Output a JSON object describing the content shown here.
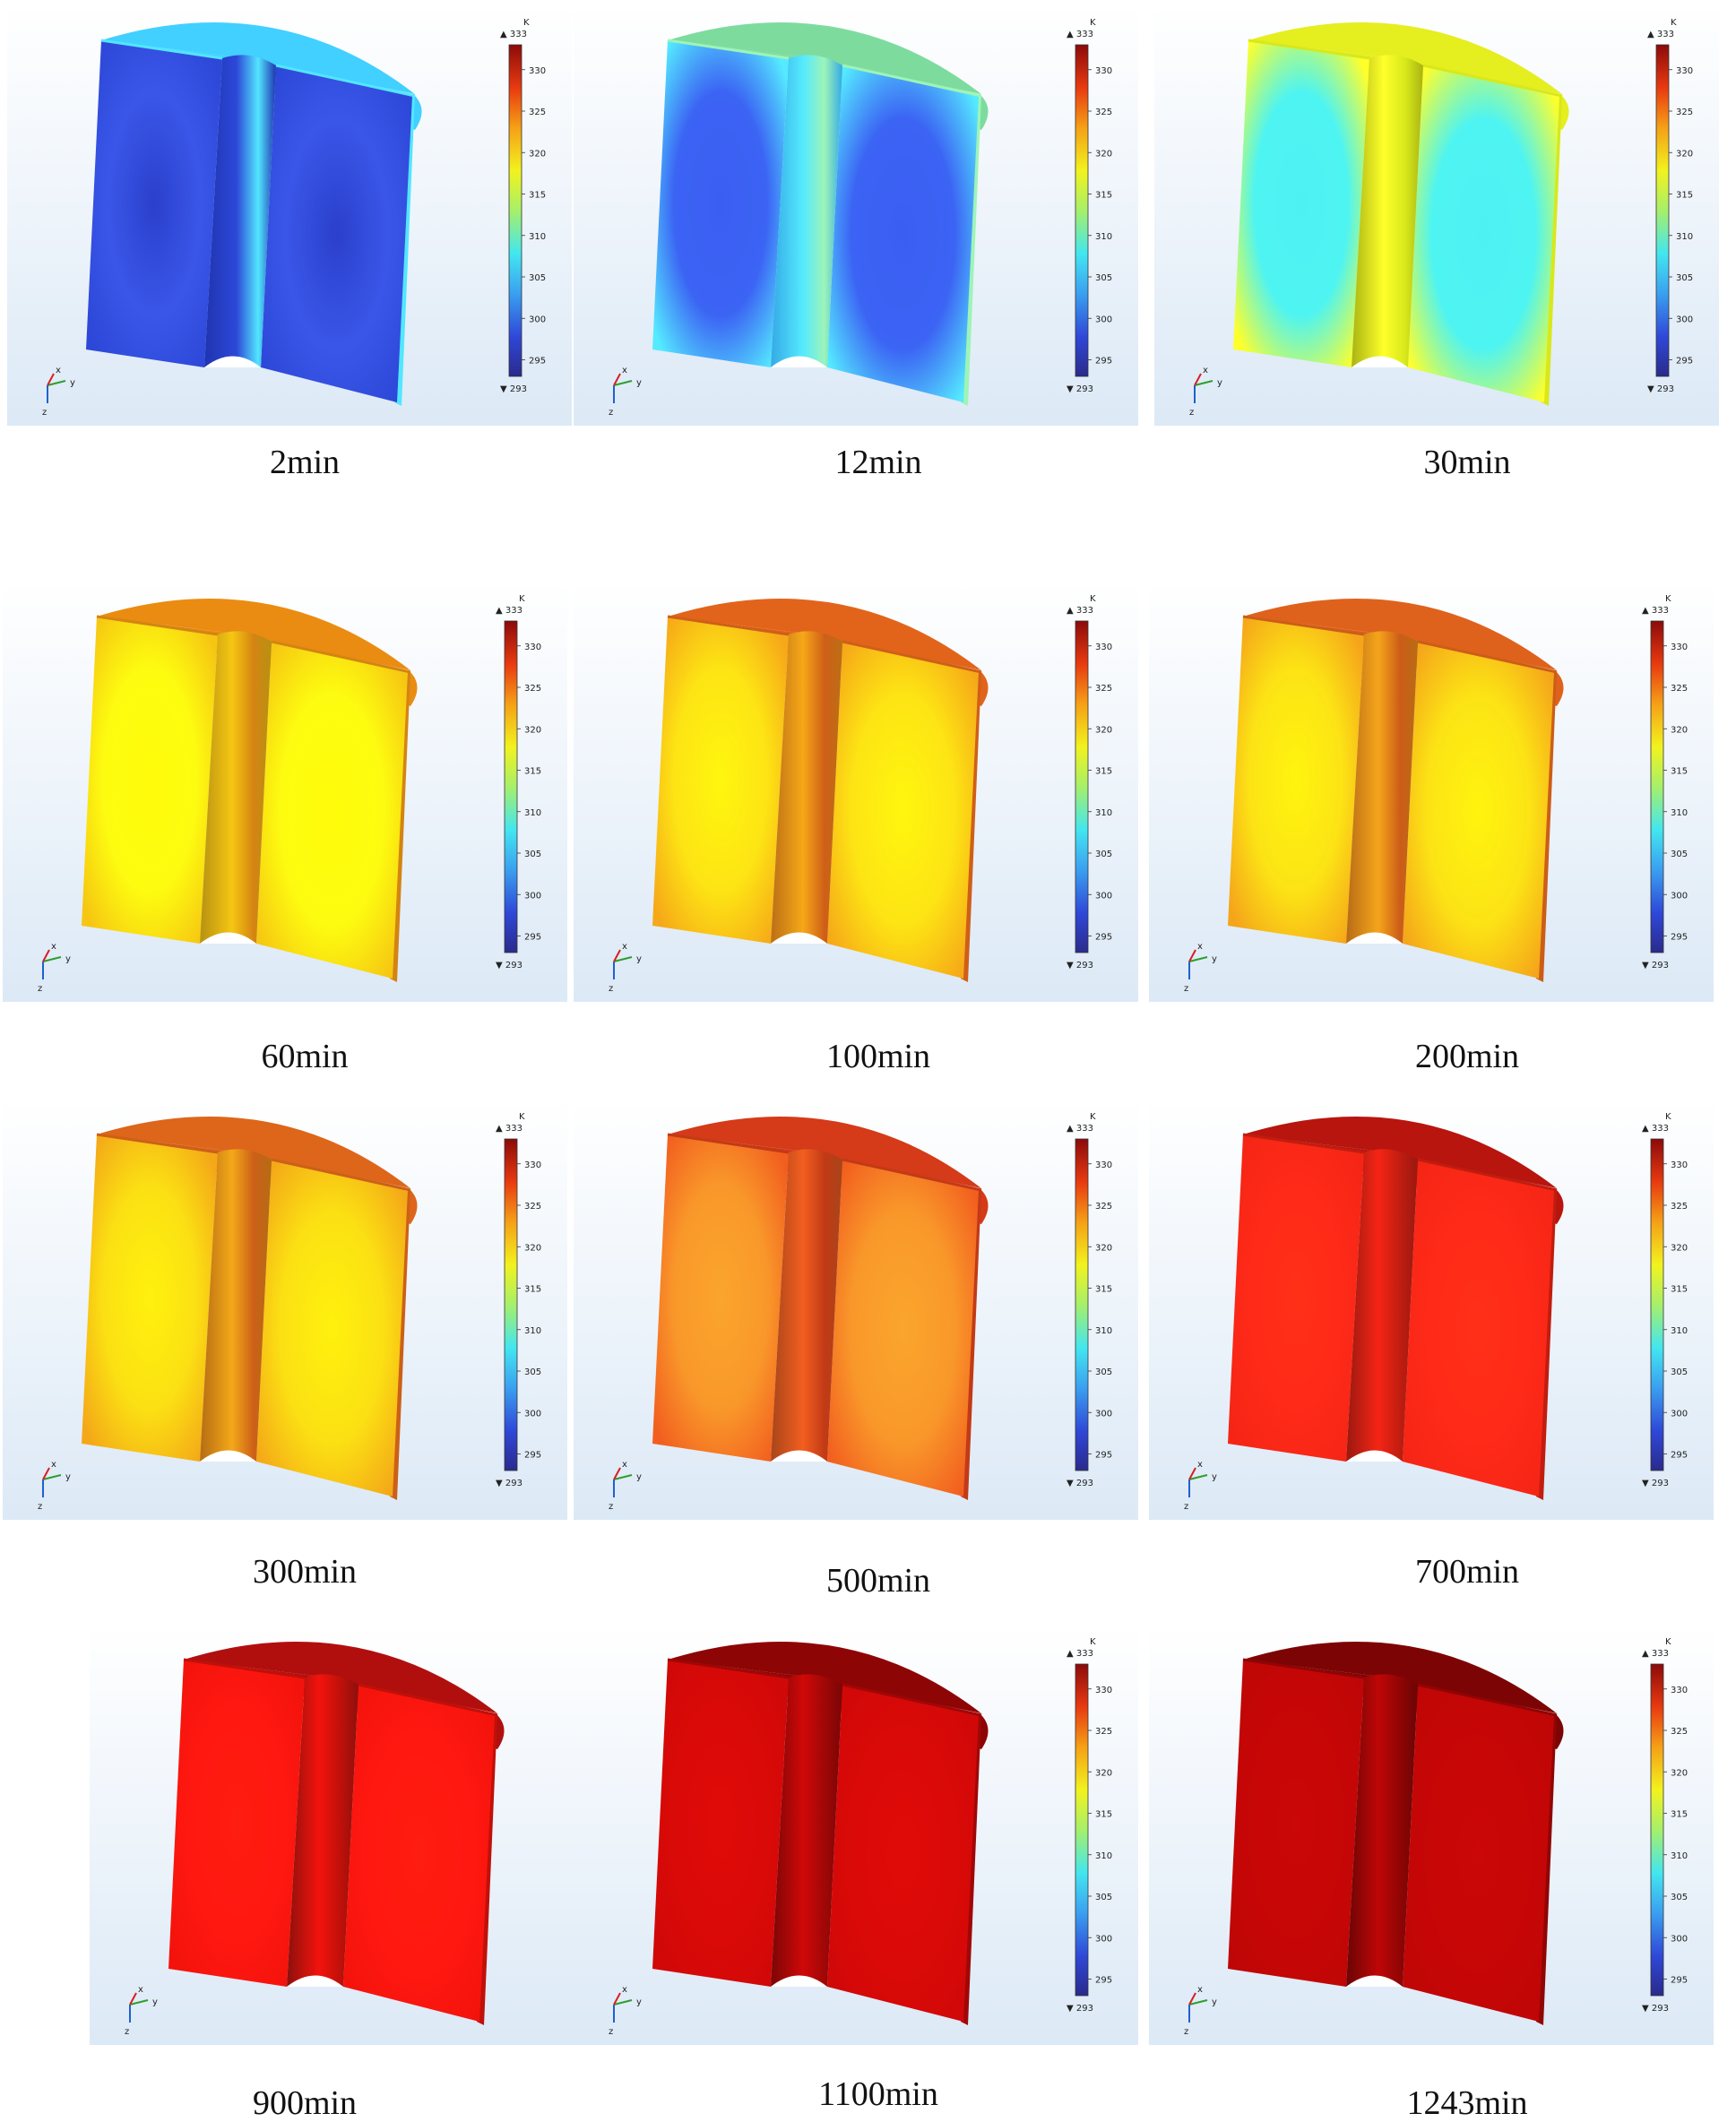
{
  "figure": {
    "colorbar": {
      "unit": "K",
      "max_label": "333",
      "min_label": "293",
      "ticks": [
        "330",
        "325",
        "320",
        "315",
        "310",
        "305",
        "300",
        "295"
      ],
      "show_in_panels": [
        true,
        true,
        true,
        true,
        true,
        true,
        true,
        true,
        true,
        false,
        true,
        true
      ]
    },
    "axis_labels": {
      "x": "x",
      "y": "y",
      "z": "z"
    },
    "colors": {
      "axis_x": "#d62020",
      "axis_y": "#2e9e2e",
      "axis_z": "#2060d0",
      "background_top": "#ffffff",
      "background_bottom": "#dce9f6"
    },
    "panels": [
      {
        "label": "2min",
        "face_inner": "#3a56e8",
        "face_outer": "#2d48d8",
        "top": "#41d0ff",
        "shade": "#1f34b0",
        "edge": "#52e6ff",
        "blob": "#2b40cc"
      },
      {
        "label": "12min",
        "face_inner": "#3b63f4",
        "face_outer": "#55eaff",
        "top": "#7edb9e",
        "shade": "#34a9e6",
        "edge": "#9df4b8",
        "blob": "#3b5ef2"
      },
      {
        "label": "30min",
        "face_inner": "#4ef4f2",
        "face_outer": "#ffff2a",
        "top": "#e5ee1f",
        "shade": "#a9b412",
        "edge": "#d8e81a",
        "blob": "#4ef1f2"
      },
      {
        "label": "60min",
        "face_inner": "#fdfc10",
        "face_outer": "#f6c612",
        "top": "#ea8c12",
        "shade": "#b79112",
        "edge": "#d48412",
        "blob": "#fffb0a"
      },
      {
        "label": "100min",
        "face_inner": "#fde414",
        "face_outer": "#f6a818",
        "top": "#e2641b",
        "shade": "#bb6f15",
        "edge": "#cf5f18",
        "blob": "#fff60e"
      },
      {
        "label": "200min",
        "face_inner": "#fce315",
        "face_outer": "#f5a51a",
        "top": "#df621c",
        "shade": "#b86c15",
        "edge": "#cc5d18",
        "blob": "#fff40e"
      },
      {
        "label": "300min",
        "face_inner": "#fbe013",
        "face_outer": "#f4a818",
        "top": "#dd661a",
        "shade": "#b56c14",
        "edge": "#cc6018",
        "blob": "#fff10d"
      },
      {
        "label": "500min",
        "face_inner": "#f9982a",
        "face_outer": "#f25e1f",
        "top": "#d53a19",
        "shade": "#a8451a",
        "edge": "#c23a16",
        "blob": "#faa52c"
      },
      {
        "label": "700min",
        "face_inner": "#ff2a18",
        "face_outer": "#f52515",
        "top": "#b8150f",
        "shade": "#9a1810",
        "edge": "#c01d10",
        "blob": "#ff3018"
      },
      {
        "label": "900min",
        "face_inner": "#ff1810",
        "face_outer": "#f3130c",
        "top": "#b10f0e",
        "shade": "#8c100c",
        "edge": "#c0100a",
        "blob": "#ff1c10"
      },
      {
        "label": "1100min",
        "face_inner": "#da0a08",
        "face_outer": "#d00808",
        "top": "#8e0505",
        "shade": "#7a0606",
        "edge": "#a00707",
        "blob": "#df0b08"
      },
      {
        "label": "1243min",
        "face_inner": "#c70606",
        "face_outer": "#bf0606",
        "top": "#7d0404",
        "shade": "#6a0505",
        "edge": "#900505",
        "blob": "#cb0707"
      }
    ]
  }
}
